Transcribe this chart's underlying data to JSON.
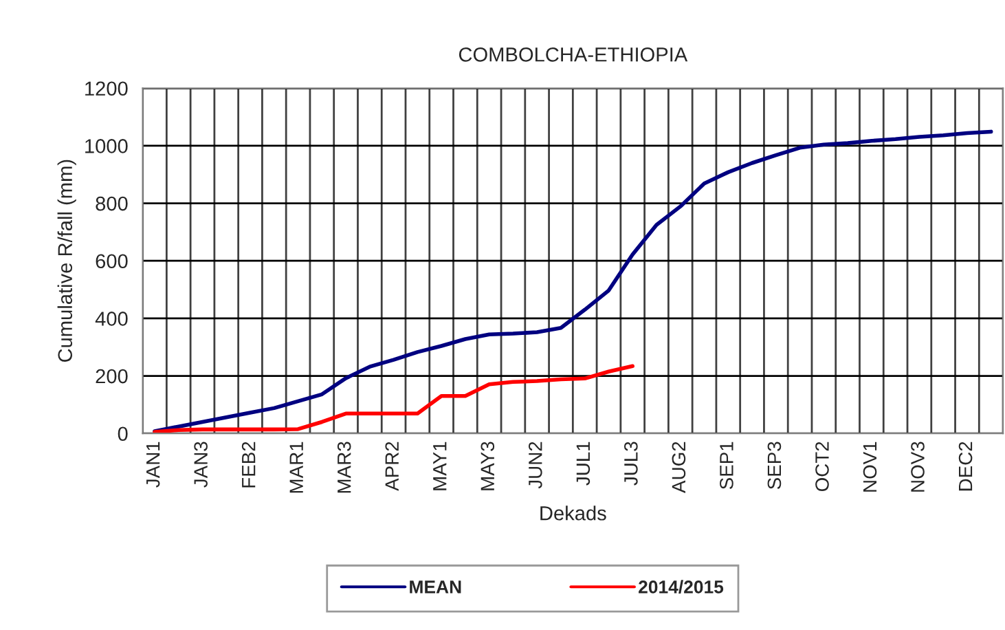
{
  "chart_data": {
    "type": "line",
    "title": "COMBOLCHA-ETHIOPIA",
    "xlabel": "Dekads",
    "ylabel": "Cumulative R/fall (mm)",
    "categories": [
      "JAN1",
      null,
      "JAN3",
      null,
      "FEB2",
      null,
      "MAR1",
      null,
      "MAR3",
      null,
      "APR2",
      null,
      "MAY1",
      null,
      "MAY3",
      null,
      "JUN2",
      null,
      "JUL1",
      null,
      "JUL3",
      null,
      "AUG2",
      null,
      "SEP1",
      null,
      "SEP3",
      null,
      "OCT2",
      null,
      "NOV1",
      null,
      "NOV3",
      null,
      "DEC2",
      null
    ],
    "series": [
      {
        "name": "MEAN",
        "color": "#000080",
        "values": [
          8,
          24,
          40,
          56,
          72,
          88,
          112,
          136,
          192,
          232,
          256,
          283,
          304,
          328,
          344,
          347,
          352,
          367,
          430,
          497,
          622,
          725,
          789,
          869,
          908,
          940,
          967,
          993,
          1004,
          1009,
          1017,
          1023,
          1031,
          1036,
          1044,
          1049
        ]
      },
      {
        "name": "2014/2015",
        "color": "#ff0000",
        "values": [
          5,
          12,
          14,
          14,
          14,
          14,
          15,
          40,
          69,
          69,
          69,
          69,
          130,
          130,
          171,
          179,
          182,
          188,
          191,
          215,
          234,
          null,
          null,
          null,
          null,
          null,
          null,
          null,
          null,
          null,
          null,
          null,
          null,
          null,
          null,
          null
        ]
      }
    ],
    "ylim": [
      0,
      1200
    ],
    "yticks": [
      0,
      200,
      400,
      600,
      800,
      1000,
      1200
    ],
    "grid": true,
    "legend": "bottom",
    "marker": "none",
    "line_style": "solid"
  }
}
